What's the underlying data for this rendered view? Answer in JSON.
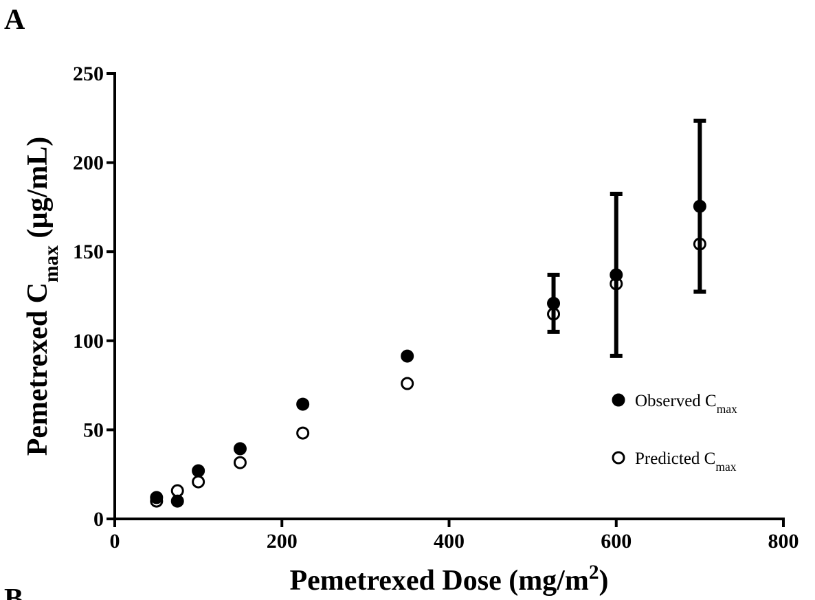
{
  "panels": [
    "A",
    "B"
  ],
  "chart_data": {
    "type": "scatter",
    "xlabel": [
      {
        "text": "Pemetrexed Dose (mg/m"
      },
      {
        "text": "2",
        "sup": true
      },
      {
        "text": ")"
      }
    ],
    "ylabel": [
      {
        "text": "Pemetrexed C"
      },
      {
        "text": "max",
        "sub": true
      },
      {
        "text": " (µg/mL)"
      }
    ],
    "x": [
      50,
      75,
      100,
      150,
      225,
      350,
      525,
      600,
      700
    ],
    "series": [
      {
        "name": [
          {
            "text": "Observed C"
          },
          {
            "text": "max",
            "sub": true
          }
        ],
        "color": "#000000",
        "filled": true,
        "values": [
          12,
          10,
          27,
          39.4,
          64.4,
          91.4,
          121,
          137,
          175.5
        ],
        "errors": [
          null,
          null,
          null,
          null,
          null,
          null,
          16,
          45.5,
          48
        ]
      },
      {
        "name": [
          {
            "text": "Predicted C"
          },
          {
            "text": "max",
            "sub": true
          }
        ],
        "color": "#000000",
        "filled": false,
        "values": [
          10,
          15.8,
          20.8,
          31.6,
          48.2,
          76,
          115,
          132,
          154.3
        ]
      }
    ],
    "xlim": [
      0,
      800
    ],
    "xticks": [
      0,
      200,
      400,
      600,
      800
    ],
    "ylim": [
      0,
      250
    ],
    "yticks": [
      0,
      50,
      100,
      150,
      200,
      250
    ],
    "legend": "lower-right",
    "grid": false
  }
}
